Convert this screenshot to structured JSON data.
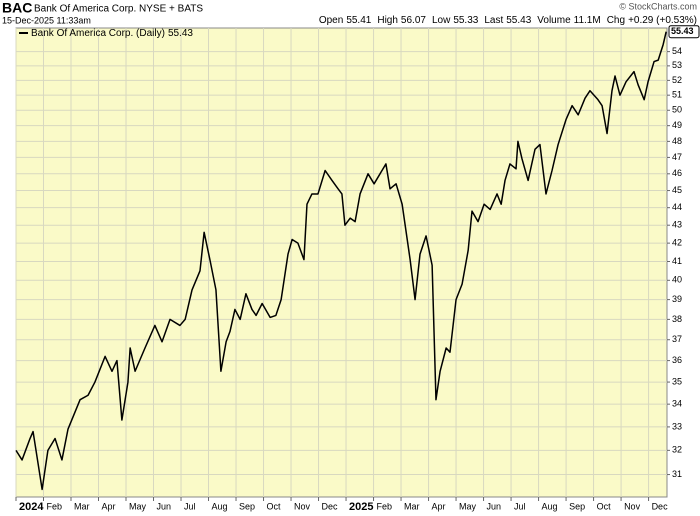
{
  "chart_data": {
    "type": "line",
    "title": "BAC",
    "subtitle": "Bank Of America Corp. NYSE + BATS",
    "date": "15-Dec-2025 11:33am",
    "credit": "© StockCharts.com",
    "quote": [
      {
        "label": "Open",
        "value": 55.41
      },
      {
        "label": "High",
        "value": 56.07
      },
      {
        "label": "Low",
        "value": 55.33
      },
      {
        "label": "Last",
        "value": 55.43
      },
      {
        "label": "Volume",
        "value": "11.1M"
      },
      {
        "label": "Chg",
        "value": "+0.29 (+0.53%)"
      }
    ],
    "log_scale": true,
    "grid": true,
    "legend": "top-left",
    "xlim": [
      0,
      23.67
    ],
    "xticks": [
      {
        "value": 0,
        "label": "2024"
      },
      {
        "value": 1,
        "label": "Feb"
      },
      {
        "value": 2,
        "label": "Mar"
      },
      {
        "value": 3,
        "label": "Apr"
      },
      {
        "value": 4,
        "label": "May"
      },
      {
        "value": 5,
        "label": "Jun"
      },
      {
        "value": 6,
        "label": "Jul"
      },
      {
        "value": 7,
        "label": "Aug"
      },
      {
        "value": 8,
        "label": "Sep"
      },
      {
        "value": 9,
        "label": "Oct"
      },
      {
        "value": 10,
        "label": "Nov"
      },
      {
        "value": 11,
        "label": "Dec"
      },
      {
        "value": 12,
        "label": "2025"
      },
      {
        "value": 13,
        "label": "Feb"
      },
      {
        "value": 14,
        "label": "Mar"
      },
      {
        "value": 15,
        "label": "Apr"
      },
      {
        "value": 16,
        "label": "May"
      },
      {
        "value": 17,
        "label": "Jun"
      },
      {
        "value": 18,
        "label": "Jul"
      },
      {
        "value": 19,
        "label": "Aug"
      },
      {
        "value": 20,
        "label": "Sep"
      },
      {
        "value": 21,
        "label": "Oct"
      },
      {
        "value": 22,
        "label": "Nov"
      },
      {
        "value": 23,
        "label": "Dec"
      }
    ],
    "ylim": [
      30.1,
      55.7
    ],
    "yticks": [
      31,
      32,
      33,
      34,
      35,
      36,
      37,
      38,
      39,
      40,
      41,
      42,
      43,
      44,
      45,
      46,
      47,
      48,
      49,
      50,
      51,
      52,
      53,
      54
    ],
    "x": [
      0,
      0.22,
      0.51,
      0.62,
      0.95,
      1.16,
      1.42,
      1.67,
      1.89,
      2.33,
      2.62,
      2.87,
      3.24,
      3.49,
      3.67,
      3.85,
      4.07,
      4.15,
      4.33,
      4.69,
      5.05,
      5.31,
      5.6,
      5.96,
      6.15,
      6.4,
      6.69,
      6.84,
      7.05,
      7.27,
      7.45,
      7.64,
      7.78,
      7.96,
      8.15,
      8.36,
      8.58,
      8.73,
      8.95,
      9.24,
      9.45,
      9.64,
      9.89,
      10.04,
      10.25,
      10.47,
      10.58,
      10.76,
      10.98,
      11.24,
      11.49,
      11.71,
      11.85,
      11.96,
      12.15,
      12.33,
      12.51,
      12.8,
      13.02,
      13.45,
      13.6,
      13.82,
      14.04,
      14.33,
      14.51,
      14.69,
      14.91,
      15.13,
      15.27,
      15.42,
      15.64,
      15.78,
      16.0,
      16.22,
      16.44,
      16.58,
      16.8,
      17.02,
      17.24,
      17.49,
      17.64,
      17.78,
      17.96,
      18.18,
      18.25,
      18.4,
      18.62,
      18.87,
      19.05,
      19.27,
      19.49,
      19.71,
      20.0,
      20.22,
      20.44,
      20.69,
      20.87,
      21.16,
      21.31,
      21.49,
      21.67,
      21.78,
      21.96,
      22.18,
      22.47,
      22.62,
      22.84,
      22.98,
      23.2,
      23.35,
      23.53,
      23.64
    ],
    "series": [
      {
        "name": "Bank Of America Corp. (Daily)",
        "color": "#000000",
        "values": [
          32.0,
          31.6,
          32.5,
          32.8,
          30.4,
          32.0,
          32.5,
          31.6,
          32.9,
          34.2,
          34.4,
          35.0,
          36.2,
          35.5,
          36.0,
          33.3,
          35.0,
          36.6,
          35.5,
          36.6,
          37.7,
          36.9,
          38.0,
          37.7,
          38.0,
          39.5,
          40.5,
          42.6,
          41.1,
          39.5,
          35.5,
          36.9,
          37.4,
          38.5,
          38.0,
          39.3,
          38.5,
          38.2,
          38.8,
          38.1,
          38.2,
          39.0,
          41.4,
          42.2,
          42.0,
          41.1,
          44.2,
          44.8,
          44.8,
          46.2,
          45.6,
          45.1,
          44.8,
          43.0,
          43.4,
          43.2,
          44.8,
          46.0,
          45.4,
          46.6,
          45.1,
          45.4,
          44.2,
          41.1,
          39.0,
          41.4,
          42.4,
          40.8,
          34.2,
          35.5,
          36.6,
          36.4,
          39.0,
          39.8,
          41.6,
          43.8,
          43.2,
          44.2,
          43.9,
          44.8,
          44.2,
          45.6,
          46.6,
          46.3,
          48.0,
          46.9,
          45.6,
          47.5,
          47.8,
          44.8,
          46.2,
          47.8,
          49.4,
          50.3,
          49.7,
          50.8,
          51.3,
          50.7,
          50.3,
          48.5,
          51.3,
          52.3,
          51.0,
          51.9,
          52.6,
          51.7,
          50.7,
          51.9,
          53.3,
          53.4,
          54.5,
          55.43
        ]
      }
    ]
  }
}
